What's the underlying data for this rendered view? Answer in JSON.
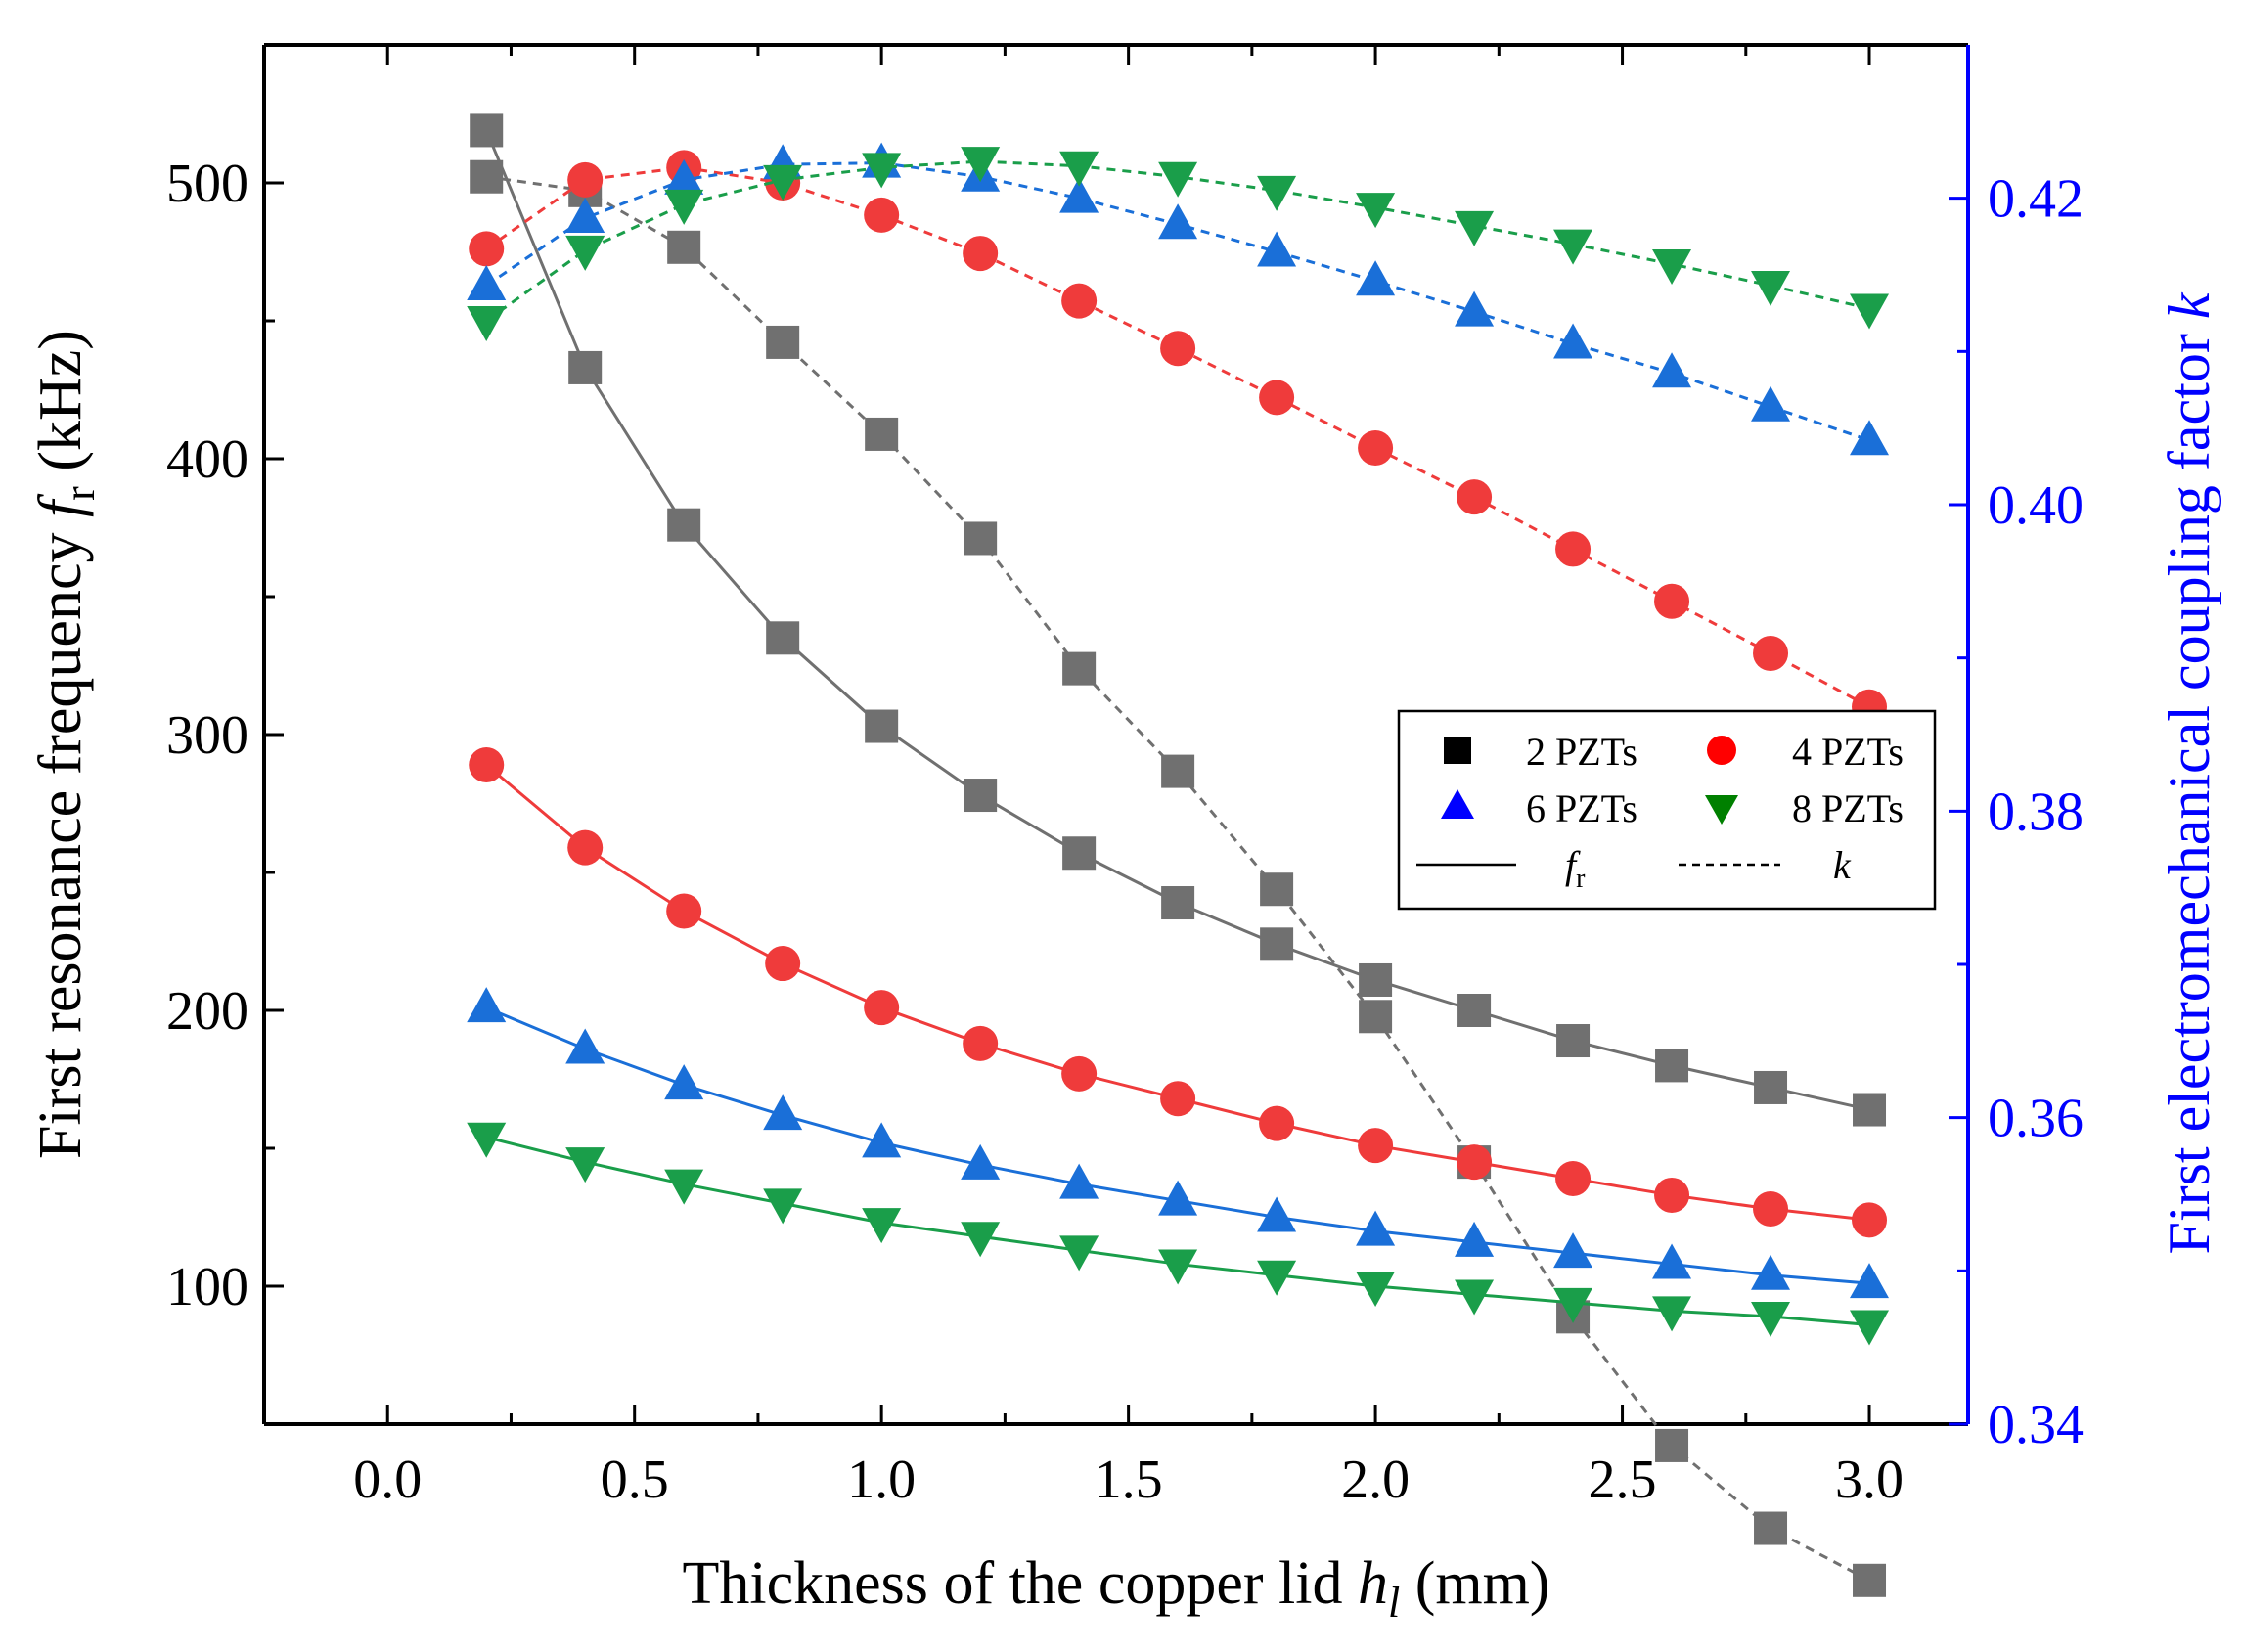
{
  "chart_data": {
    "type": "line",
    "xlabel": {
      "main": "Thickness of the copper lid ",
      "var": "h",
      "sub": "l",
      "unit": " (mm)"
    },
    "ylabel_left": {
      "main": "First resonance frequency ",
      "var": "f",
      "sub": "r",
      "unit": " (kHz)"
    },
    "ylabel_right": {
      "main": "First electromechanical coupling factor ",
      "var": "k"
    },
    "xlim": [
      -0.25,
      3.2
    ],
    "ylim_left": [
      50,
      550
    ],
    "ylim_right": [
      0.34,
      0.43
    ],
    "x_ticks": [
      "0.0",
      "0.5",
      "1.0",
      "1.5",
      "2.0",
      "2.5",
      "3.0"
    ],
    "y_left_ticks": [
      "100",
      "200",
      "300",
      "400",
      "500"
    ],
    "y_right_ticks": [
      "0.34",
      "0.36",
      "0.38",
      "0.40",
      "0.42"
    ],
    "x": [
      0.2,
      0.4,
      0.6,
      0.8,
      1.0,
      1.2,
      1.4,
      1.6,
      1.8,
      2.0,
      2.2,
      2.4,
      2.6,
      2.8,
      3.0
    ],
    "grid": false,
    "legend_position": "center-right",
    "legend": {
      "items": [
        "2 PZTs",
        "4 PZTs",
        "6 PZTs",
        "8 PZTs"
      ],
      "line_fr_var": "f",
      "line_fr_sub": "r",
      "line_k_var": "k"
    },
    "series": [
      {
        "name": "2 PZTs",
        "color": "#707070",
        "marker": "square",
        "fr": [
          519,
          433,
          376,
          335,
          303,
          278,
          257,
          239,
          224,
          211,
          200,
          189,
          180,
          172,
          164
        ],
        "k": [
          0.4214,
          0.4205,
          0.4168,
          0.4106,
          0.4046,
          0.3978,
          0.3893,
          0.3826,
          0.3749,
          0.3666,
          0.3571,
          0.347,
          0.3386,
          0.3332,
          0.3298
        ]
      },
      {
        "name": "4 PZTs",
        "color": "#ef3b3b",
        "marker": "circle",
        "fr": [
          289,
          259,
          236,
          217,
          201,
          188,
          177,
          168,
          159,
          151,
          145,
          139,
          133,
          128,
          124
        ],
        "k": [
          0.4167,
          0.4212,
          0.422,
          0.421,
          0.4189,
          0.4164,
          0.4133,
          0.4102,
          0.407,
          0.4037,
          0.4005,
          0.3971,
          0.3937,
          0.3903,
          0.3868
        ]
      },
      {
        "name": "6 PZTs",
        "color": "#1a6fd8",
        "marker": "triangle-up",
        "fr": [
          201,
          186,
          173,
          162,
          152,
          144,
          137,
          131,
          125,
          120,
          116,
          112,
          108,
          104,
          101
        ],
        "k": [
          0.4143,
          0.4187,
          0.4212,
          0.4222,
          0.4223,
          0.4214,
          0.42,
          0.4183,
          0.4165,
          0.4146,
          0.4126,
          0.4105,
          0.4086,
          0.4064,
          0.4042
        ]
      },
      {
        "name": "8 PZTs",
        "color": "#1a9e4a",
        "marker": "triangle-down",
        "fr": [
          154,
          145,
          137,
          130,
          123,
          118,
          113,
          108,
          104,
          100,
          97,
          94,
          91,
          89,
          86
        ],
        "k": [
          0.412,
          0.4166,
          0.4196,
          0.4212,
          0.422,
          0.4224,
          0.4221,
          0.4214,
          0.4205,
          0.4194,
          0.4182,
          0.417,
          0.4157,
          0.4143,
          0.4128
        ]
      }
    ],
    "colors": {
      "axis_left": "#000000",
      "axis_right": "#0000ff"
    }
  }
}
